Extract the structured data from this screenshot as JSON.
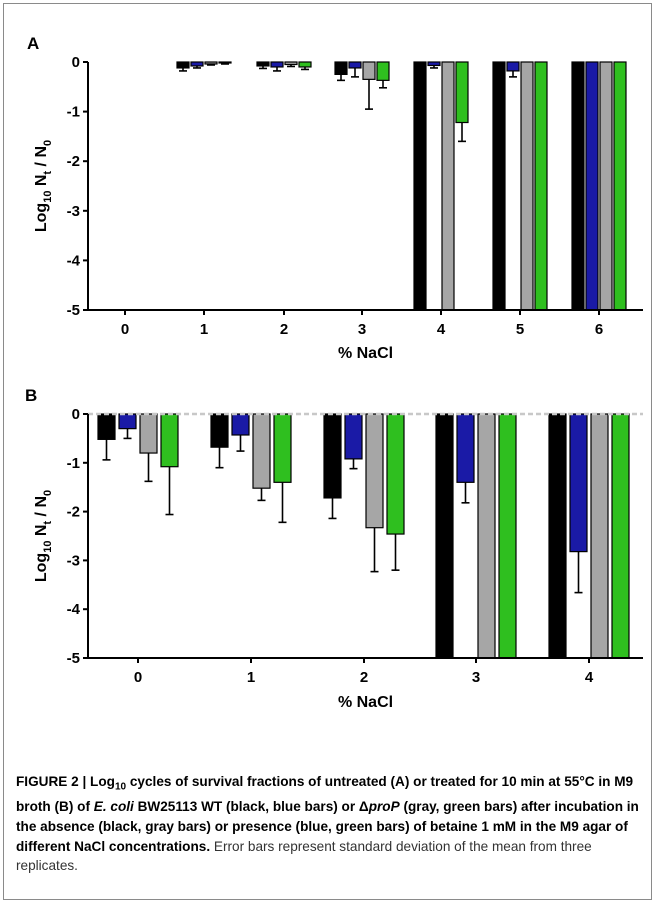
{
  "colors": {
    "wt_no_betaine": "#000000",
    "wt_betaine": "#1a1aa6",
    "prop_no_betaine": "#a6a6a6",
    "prop_betaine": "#2fbf1f"
  },
  "chart_data": [
    {
      "panel": "A",
      "type": "bar",
      "xlabel": "% NaCl",
      "ylabel": "Log10 Nt / N0",
      "ylim": [
        -5,
        0
      ],
      "yticks": [
        0,
        -1,
        -2,
        -3,
        -4,
        -5
      ],
      "categories": [
        "0",
        "1",
        "2",
        "3",
        "4",
        "5",
        "6"
      ],
      "series": [
        {
          "color_key": "wt_no_betaine",
          "values": [
            null,
            -0.12,
            -0.08,
            -0.25,
            -5,
            -5,
            -5
          ],
          "errors": [
            null,
            0.06,
            0.05,
            0.12,
            0,
            0,
            0
          ]
        },
        {
          "color_key": "wt_betaine",
          "values": [
            null,
            -0.08,
            -0.1,
            -0.12,
            -0.07,
            -0.18,
            -5
          ],
          "errors": [
            null,
            0.04,
            0.08,
            0.18,
            0.05,
            0.12,
            0
          ]
        },
        {
          "color_key": "prop_no_betaine",
          "values": [
            null,
            -0.04,
            -0.05,
            -0.35,
            -5,
            -5,
            -5
          ],
          "errors": [
            null,
            0.02,
            0.04,
            0.6,
            0,
            0,
            0
          ]
        },
        {
          "color_key": "prop_betaine",
          "values": [
            null,
            -0.02,
            -0.1,
            -0.37,
            -1.22,
            -5,
            -5
          ],
          "errors": [
            null,
            0.02,
            0.05,
            0.15,
            0.38,
            0,
            0
          ]
        }
      ]
    },
    {
      "panel": "B",
      "type": "bar",
      "xlabel": "% NaCl",
      "ylabel": "Log10 Nt / N0",
      "ylim": [
        -5,
        0
      ],
      "yticks": [
        0,
        -1,
        -2,
        -3,
        -4,
        -5
      ],
      "categories": [
        "0",
        "1",
        "2",
        "3",
        "4"
      ],
      "series": [
        {
          "color_key": "wt_no_betaine",
          "values": [
            -0.52,
            -0.68,
            -1.72,
            -5,
            -5
          ],
          "errors": [
            0.42,
            0.42,
            0.42,
            0,
            0
          ]
        },
        {
          "color_key": "wt_betaine",
          "values": [
            -0.3,
            -0.43,
            -0.92,
            -1.4,
            -2.82
          ],
          "errors": [
            0.2,
            0.33,
            0.2,
            0.42,
            0.84
          ]
        },
        {
          "color_key": "prop_no_betaine",
          "values": [
            -0.8,
            -1.52,
            -2.33,
            -5,
            -5
          ],
          "errors": [
            0.58,
            0.25,
            0.9,
            0,
            0
          ]
        },
        {
          "color_key": "prop_betaine",
          "values": [
            -1.08,
            -1.4,
            -2.46,
            -5,
            -5
          ],
          "errors": [
            0.98,
            0.82,
            0.74,
            0,
            0
          ]
        }
      ]
    }
  ],
  "caption": {
    "label": "FIGURE 2 | Log",
    "label_sub": "10",
    "bold_1": " cycles of survival fractions of untreated (A) or treated for 10 min at 55°C in M9 broth (B) of ",
    "species": "E. coli",
    "bold_2": " BW25113 WT (black, blue bars) or Δ",
    "gene": "proP",
    "bold_3": " (gray, green bars) after incubation in the absence (black, gray bars) or presence (blue, green bars) of betaine 1 mM in the M9 agar of different NaCl concentrations.",
    "description": " Error bars represent standard deviation of the mean from three replicates."
  }
}
